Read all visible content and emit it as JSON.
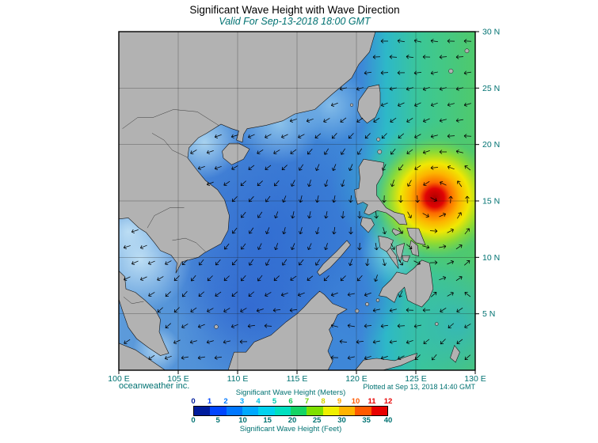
{
  "title": "Significant Wave Height with Wave Direction",
  "subtitle": "Valid For Sep-13-2018 18:00 GMT",
  "footer": {
    "credit": "oceanweather inc.",
    "plotted": "Plotted at Sep 13, 2018 14:40 GMT"
  },
  "map": {
    "lon_range": [
      100,
      130
    ],
    "lat_range": [
      0,
      30
    ],
    "lon_ticks": [
      {
        "value": 100,
        "label": "100 E"
      },
      {
        "value": 105,
        "label": "105 E"
      },
      {
        "value": 110,
        "label": "110 E"
      },
      {
        "value": 115,
        "label": "115 E"
      },
      {
        "value": 120,
        "label": "120 E"
      },
      {
        "value": 125,
        "label": "125 E"
      },
      {
        "value": 130,
        "label": "130 E"
      }
    ],
    "lat_ticks": [
      {
        "value": 5,
        "label": "5 N"
      },
      {
        "value": 10,
        "label": "10 N"
      },
      {
        "value": 15,
        "label": "15 N"
      },
      {
        "value": 20,
        "label": "20 N"
      },
      {
        "value": 25,
        "label": "25 N"
      },
      {
        "value": 30,
        "label": "30 N"
      }
    ]
  },
  "colorbar": {
    "title_meters": "Significant Wave Height (Meters)",
    "title_feet": "Significant Wave Height (Feet)",
    "meter_ticks": [
      0,
      1,
      2,
      3,
      4,
      5,
      6,
      7,
      8,
      9,
      10,
      11,
      12
    ],
    "feet_ticks": [
      0,
      5,
      10,
      15,
      20,
      25,
      30,
      35,
      40
    ],
    "segment_colors": [
      "#001c9c",
      "#0045ff",
      "#0078ff",
      "#00a9ff",
      "#00d2ef",
      "#00e0c0",
      "#14d464",
      "#7ee000",
      "#f0f000",
      "#ffb400",
      "#ff5a00",
      "#e80000"
    ],
    "meter_tick_colors": [
      "#001c9c",
      "#0045ff",
      "#0078ff",
      "#00a9ff",
      "#00c2e0",
      "#00cdb0",
      "#10c855",
      "#6cd000",
      "#d6d600",
      "#ffa800",
      "#ff5a00",
      "#e80000",
      "#e80000"
    ],
    "feet_tick_color": "#007272"
  },
  "colors": {
    "label_teal": "#007272",
    "title_text": "#000000",
    "land_gray": "#b2b2b2",
    "coastline": "#161616",
    "frame": "#000000",
    "arrow": "#000000"
  }
}
